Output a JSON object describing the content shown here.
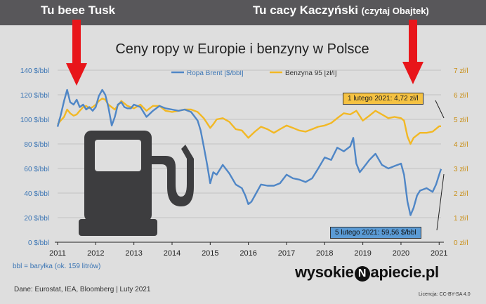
{
  "headings": {
    "left": "Tu beee Tusk",
    "right_main": "Tu cacy Kaczyński",
    "right_small": "(czytaj Obajtek)"
  },
  "chart_data": {
    "type": "line",
    "title": "Ceny ropy w Europie i benzyny w Polsce",
    "x_axis": {
      "ticks": [
        "2011",
        "2012",
        "2013",
        "2014",
        "2015",
        "2016",
        "2017",
        "2018",
        "2019",
        "2020",
        "2021"
      ],
      "range": [
        2011,
        2021.05
      ]
    },
    "y_left": {
      "ticks": [
        "0 $/bbl",
        "20 $/bbl",
        "40 $/bbl",
        "60 $/bbl",
        "80 $/bbl",
        "100 $/bbl",
        "120 $/bbl",
        "140 $/bbl"
      ],
      "range": [
        0,
        140
      ]
    },
    "y_right": {
      "ticks": [
        "0 zł/l",
        "1 zł/l",
        "2 zł/l",
        "3 zł/l",
        "4 zł/l",
        "5 zł/l",
        "6 zł/l",
        "7 zł/l"
      ],
      "range": [
        0,
        7
      ]
    },
    "grid": true,
    "legend_position": "top",
    "series": [
      {
        "name": "Ropa Brent [$/bbl]",
        "axis": "left",
        "color": "#4f86c6",
        "x": [
          2011.0,
          2011.08,
          2011.17,
          2011.25,
          2011.33,
          2011.42,
          2011.5,
          2011.58,
          2011.67,
          2011.75,
          2011.83,
          2011.92,
          2012.0,
          2012.08,
          2012.17,
          2012.25,
          2012.33,
          2012.42,
          2012.5,
          2012.58,
          2012.67,
          2012.75,
          2012.83,
          2012.92,
          2013.0,
          2013.17,
          2013.33,
          2013.5,
          2013.67,
          2013.83,
          2014.0,
          2014.17,
          2014.33,
          2014.5,
          2014.67,
          2014.75,
          2014.83,
          2014.92,
          2015.0,
          2015.08,
          2015.17,
          2015.33,
          2015.5,
          2015.67,
          2015.83,
          2015.92,
          2016.0,
          2016.08,
          2016.17,
          2016.33,
          2016.5,
          2016.67,
          2016.83,
          2017.0,
          2017.17,
          2017.33,
          2017.5,
          2017.67,
          2017.83,
          2018.0,
          2018.17,
          2018.33,
          2018.5,
          2018.67,
          2018.75,
          2018.83,
          2018.92,
          2019.0,
          2019.17,
          2019.33,
          2019.5,
          2019.67,
          2019.83,
          2020.0,
          2020.08,
          2020.17,
          2020.25,
          2020.33,
          2020.42,
          2020.5,
          2020.67,
          2020.83,
          2020.92,
          2021.0,
          2021.05
        ],
        "y": [
          94,
          103,
          115,
          124,
          114,
          112,
          116,
          110,
          112,
          108,
          110,
          107,
          110,
          119,
          124,
          120,
          110,
          95,
          102,
          112,
          114,
          110,
          109,
          109,
          112,
          110,
          102,
          107,
          111,
          109,
          108,
          107,
          108,
          106,
          99,
          91,
          78,
          63,
          48,
          57,
          55,
          63,
          56,
          47,
          44,
          38,
          31,
          33,
          38,
          47,
          46,
          46,
          48,
          55,
          52,
          51,
          49,
          52,
          60,
          69,
          67,
          77,
          74,
          78,
          85,
          64,
          57,
          60,
          67,
          72,
          63,
          60,
          62,
          64,
          55,
          33,
          22,
          28,
          38,
          42,
          44,
          41,
          47,
          55,
          59.56
        ]
      },
      {
        "name": "Benzyna 95 [zł/l]",
        "axis": "right",
        "color": "#f2b824",
        "x": [
          2011.0,
          2011.08,
          2011.17,
          2011.25,
          2011.33,
          2011.42,
          2011.5,
          2011.58,
          2011.67,
          2011.75,
          2011.83,
          2011.92,
          2012.0,
          2012.08,
          2012.17,
          2012.25,
          2012.33,
          2012.5,
          2012.67,
          2012.83,
          2013.0,
          2013.17,
          2013.33,
          2013.5,
          2013.67,
          2013.83,
          2014.0,
          2014.17,
          2014.33,
          2014.5,
          2014.67,
          2014.83,
          2015.0,
          2015.08,
          2015.17,
          2015.33,
          2015.5,
          2015.67,
          2015.83,
          2016.0,
          2016.17,
          2016.33,
          2016.5,
          2016.67,
          2016.83,
          2017.0,
          2017.17,
          2017.33,
          2017.5,
          2017.67,
          2017.83,
          2018.0,
          2018.17,
          2018.33,
          2018.5,
          2018.67,
          2018.83,
          2019.0,
          2019.17,
          2019.33,
          2019.5,
          2019.67,
          2019.83,
          2020.0,
          2020.08,
          2020.17,
          2020.25,
          2020.33,
          2020.5,
          2020.67,
          2020.83,
          2021.0,
          2021.05
        ],
        "y": [
          4.8,
          4.95,
          5.1,
          5.4,
          5.25,
          5.15,
          5.2,
          5.35,
          5.5,
          5.55,
          5.45,
          5.5,
          5.6,
          5.75,
          5.85,
          5.8,
          5.6,
          5.4,
          5.75,
          5.55,
          5.45,
          5.6,
          5.35,
          5.55,
          5.55,
          5.35,
          5.3,
          5.35,
          5.4,
          5.4,
          5.3,
          5.05,
          4.65,
          4.8,
          5.0,
          5.05,
          4.9,
          4.6,
          4.55,
          4.25,
          4.5,
          4.7,
          4.6,
          4.45,
          4.6,
          4.75,
          4.65,
          4.55,
          4.5,
          4.6,
          4.7,
          4.75,
          4.85,
          5.05,
          5.25,
          5.2,
          5.35,
          4.95,
          5.15,
          5.35,
          5.2,
          5.05,
          5.1,
          5.05,
          4.95,
          4.3,
          4.0,
          4.25,
          4.45,
          4.45,
          4.5,
          4.72,
          4.72
        ]
      }
    ],
    "annotations": {
      "benzyna": "1 lutego 2021: 4,72 zł/l",
      "ropa": "5 lutego 2021: 59,56 $/bbl"
    }
  },
  "footnote": "bbl = baryłka (ok. 159 litrów)",
  "source": "Dane: Eurostat, IEA, Bloomberg  |  Luty 2021",
  "brand": {
    "before": "wysokie",
    "n": "N",
    "after": "apiecie.pl"
  },
  "license": "Licencja: CC-BY-SA 4.0",
  "colors": {
    "arrow": "#e8151a",
    "panel": "#dedede",
    "frame": "#4a4a4d"
  },
  "icons": [
    "fuel-pump-icon",
    "arrow-down-icon",
    "lightning-icon"
  ]
}
